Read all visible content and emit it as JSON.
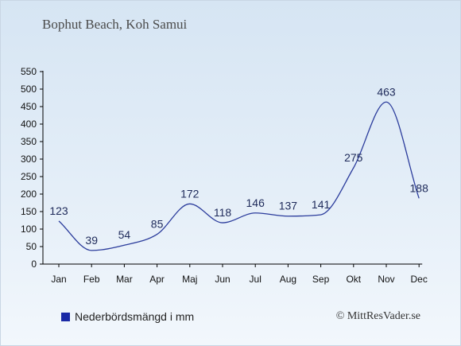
{
  "title": "Bophut Beach, Koh Samui",
  "legend": {
    "label": "Nederbördsmängd i mm"
  },
  "credit": "© MittResVader.se",
  "colors": {
    "line": "#2b3c9c",
    "swatch": "#1a2aa6",
    "axis": "#000000",
    "label": "#1e2a5a"
  },
  "chart_data": {
    "type": "line",
    "categories": [
      "Jan",
      "Feb",
      "Mar",
      "Apr",
      "Maj",
      "Jun",
      "Jul",
      "Aug",
      "Sep",
      "Okt",
      "Nov",
      "Dec"
    ],
    "series": [
      {
        "name": "Nederbördsmängd i mm",
        "values": [
          123,
          39,
          54,
          85,
          172,
          118,
          146,
          137,
          141,
          275,
          463,
          188
        ]
      }
    ],
    "ylim": [
      0,
      550
    ],
    "yticks": [
      0,
      50,
      100,
      150,
      200,
      250,
      300,
      350,
      400,
      450,
      500,
      550
    ],
    "grid": false,
    "legend_position": "bottom-left"
  }
}
